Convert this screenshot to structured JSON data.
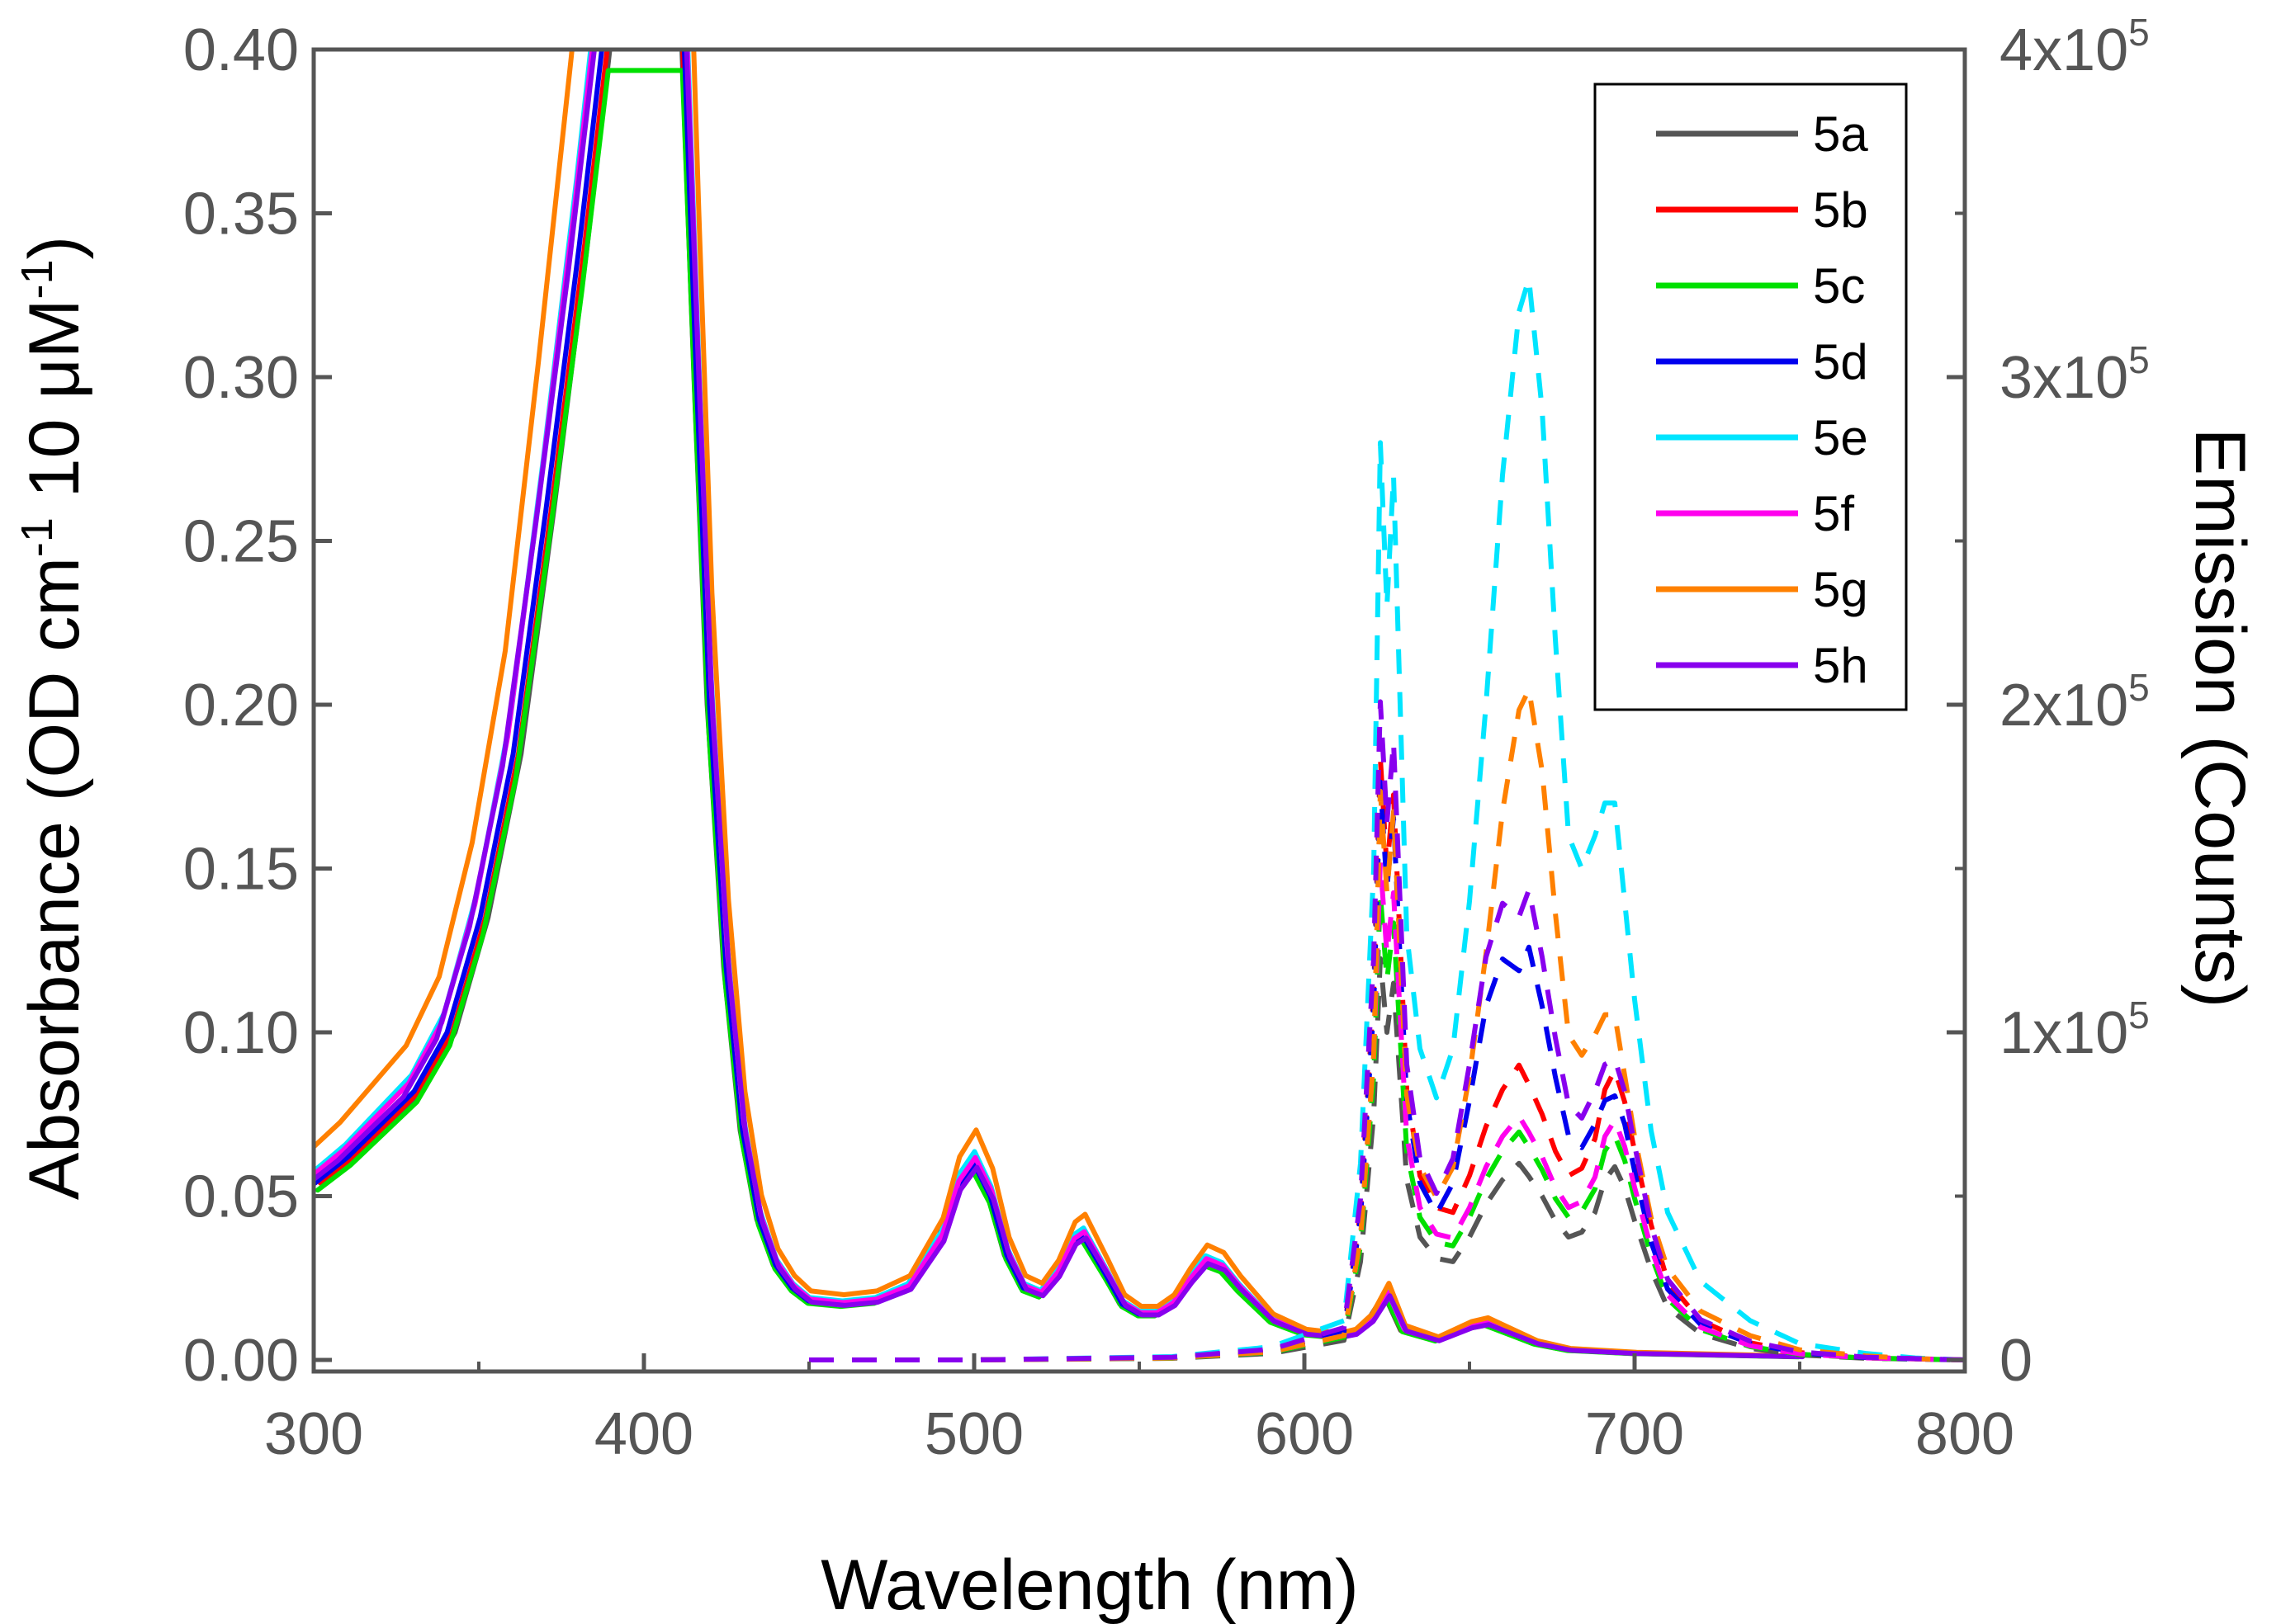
{
  "chart_data": {
    "type": "line",
    "xlabel": "Wavelength (nm)",
    "ylabel": {
      "prefix": "Absorbance (OD cm",
      "sup1": "-1",
      "middle": " 10 μM",
      "sup2": "-1",
      "suffix": ")"
    },
    "y2label": "Emission (Counts)",
    "xlim": [
      300,
      800
    ],
    "ylim": [
      0,
      0.4
    ],
    "y2lim": [
      0,
      400000
    ],
    "x_ticks": [
      "300",
      "400",
      "500",
      "600",
      "700",
      "800"
    ],
    "x_tick_values": [
      300,
      400,
      500,
      600,
      700,
      800
    ],
    "y_ticks": [
      "0.00",
      "0.05",
      "0.10",
      "0.15",
      "0.20",
      "0.25",
      "0.30",
      "0.35",
      "0.40"
    ],
    "y_tick_values": [
      0,
      0.05,
      0.1,
      0.15,
      0.2,
      0.25,
      0.3,
      0.35,
      0.4
    ],
    "y2_ticks": [
      {
        "base": "0",
        "exp": ""
      },
      {
        "base": "1x10",
        "exp": "5"
      },
      {
        "base": "2x10",
        "exp": "5"
      },
      {
        "base": "3x10",
        "exp": "5"
      },
      {
        "base": "4x10",
        "exp": "5"
      }
    ],
    "y2_tick_values": [
      0,
      100000,
      200000,
      300000,
      400000
    ],
    "legend_position": "top-right",
    "absorbance_x": [
      300,
      310,
      320,
      330,
      340,
      350,
      360,
      370,
      380,
      388,
      412,
      416,
      420,
      425,
      430,
      435,
      440,
      445,
      450,
      460,
      470,
      480,
      490,
      495,
      500,
      505,
      510,
      515,
      520,
      525,
      530,
      533,
      540,
      545,
      550,
      555,
      560,
      565,
      570,
      575,
      580,
      590,
      600,
      610,
      615,
      620,
      625,
      630,
      640,
      650,
      655,
      660,
      670,
      680,
      700,
      750
    ],
    "absorbance_base": [
      0.054,
      0.062,
      0.072,
      0.082,
      0.1,
      0.135,
      0.185,
      0.26,
      0.34,
      0.41,
      0.41,
      0.3,
      0.2,
      0.12,
      0.07,
      0.043,
      0.029,
      0.022,
      0.018,
      0.017,
      0.018,
      0.022,
      0.037,
      0.053,
      0.06,
      0.05,
      0.032,
      0.022,
      0.02,
      0.026,
      0.036,
      0.038,
      0.026,
      0.017,
      0.014,
      0.014,
      0.017,
      0.024,
      0.03,
      0.028,
      0.022,
      0.012,
      0.008,
      0.007,
      0.008,
      0.012,
      0.02,
      0.009,
      0.006,
      0.01,
      0.011,
      0.009,
      0.005,
      0.003,
      0.002,
      0.001
    ],
    "emission_x": [
      450,
      500,
      560,
      590,
      612,
      617,
      621,
      623,
      625,
      627,
      629,
      631,
      635,
      640,
      645,
      650,
      655,
      660,
      665,
      668,
      672,
      676,
      680,
      684,
      688,
      691,
      694,
      697,
      700,
      705,
      710,
      720,
      735,
      750,
      770,
      785,
      800
    ],
    "emission_profiles": {
      "A": [
        0,
        0,
        1000,
        4000,
        12000,
        60000,
        150000,
        245000,
        200000,
        230000,
        170000,
        110000,
        75000,
        62000,
        75000,
        110000,
        150000,
        170000,
        165000,
        175000,
        150000,
        120000,
        95000,
        90000,
        100000,
        110000,
        112000,
        100000,
        80000,
        50000,
        30000,
        15000,
        7000,
        3000,
        1000,
        500,
        0
      ],
      "B": [
        0,
        0,
        1000,
        4000,
        12000,
        60000,
        150000,
        245000,
        200000,
        230000,
        170000,
        110000,
        75000,
        62000,
        60000,
        75000,
        95000,
        110000,
        120000,
        112000,
        100000,
        85000,
        75000,
        78000,
        90000,
        110000,
        118000,
        105000,
        85000,
        55000,
        32000,
        16000,
        7000,
        3000,
        1000,
        500,
        0
      ],
      "C": [
        0,
        0,
        1000,
        4000,
        12000,
        60000,
        150000,
        280000,
        230000,
        270000,
        200000,
        130000,
        95000,
        80000,
        95000,
        140000,
        200000,
        270000,
        320000,
        330000,
        290000,
        220000,
        160000,
        150000,
        160000,
        170000,
        170000,
        140000,
        110000,
        70000,
        45000,
        24000,
        12000,
        5000,
        2000,
        600,
        0
      ]
    },
    "series": [
      {
        "name": "5a",
        "color": "#555555",
        "abs_scale": 1.0,
        "abs_end": 750,
        "em_scale": 0.5,
        "em_profile": "B"
      },
      {
        "name": "5b",
        "color": "#ff0000",
        "abs_scale": 1.0,
        "abs_end": 750,
        "em_scale": 0.75,
        "em_profile": "B"
      },
      {
        "name": "5c",
        "color": "#00e000",
        "abs_scale": 0.96,
        "abs_end": 750,
        "em_scale": 0.58,
        "em_profile": "B"
      },
      {
        "name": "5d",
        "color": "#0000ee",
        "abs_scale": 1.0,
        "abs_end": 552,
        "em_scale": 0.72,
        "em_profile": "A"
      },
      {
        "name": "5e",
        "color": "#00e5ff",
        "abs_scale": 1.06,
        "abs_end": 750,
        "em_scale": 1.0,
        "em_profile": "C"
      },
      {
        "name": "5f",
        "color": "#ff00ee",
        "abs_scale": 1.03,
        "abs_end": 750,
        "em_scale": 0.62,
        "em_profile": "B"
      },
      {
        "name": "5g",
        "color": "#ff8000",
        "abs_scale": 1.17,
        "abs_end": 750,
        "em_scale": 0.62,
        "em_profile": "C"
      },
      {
        "name": "5h",
        "color": "#8800ee",
        "abs_scale": 0.98,
        "abs_end": 750,
        "em_scale": 0.82,
        "em_profile": "A"
      }
    ]
  }
}
